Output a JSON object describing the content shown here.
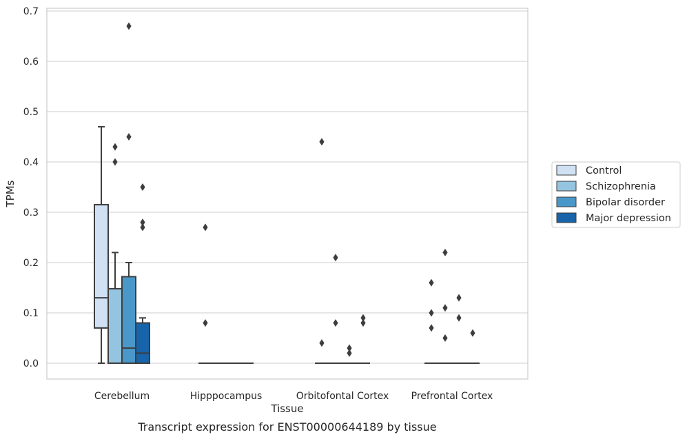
{
  "chart_data": {
    "type": "box",
    "title": "",
    "caption": "Transcript expression for ENST00000644189 by tissue",
    "xlabel": "Tissue",
    "ylabel": "TPMs",
    "ylim": [
      -0.032,
      0.705
    ],
    "yticks": [
      "0.0",
      "0.1",
      "0.2",
      "0.3",
      "0.4",
      "0.5",
      "0.6",
      "0.7"
    ],
    "grid": true,
    "legend_position": "right",
    "categories": [
      "Cerebellum",
      "Hipppocampus",
      "Orbitofontal Cortex",
      "Prefrontal Cortex"
    ],
    "series": [
      {
        "name": "Control",
        "color": "#cfe1f2",
        "boxes": [
          {
            "q1": 0.07,
            "median": 0.13,
            "q3": 0.315,
            "whisker_low": 0.0,
            "whisker_high": 0.47,
            "outliers": []
          },
          {
            "q1": 0.0,
            "median": 0.0,
            "q3": 0.0,
            "whisker_low": 0.0,
            "whisker_high": 0.0,
            "outliers": [
              0.27,
              0.08
            ]
          },
          {
            "q1": 0.0,
            "median": 0.0,
            "q3": 0.0,
            "whisker_low": 0.0,
            "whisker_high": 0.0,
            "outliers": [
              0.44,
              0.04
            ]
          },
          {
            "q1": 0.0,
            "median": 0.0,
            "q3": 0.0,
            "whisker_low": 0.0,
            "whisker_high": 0.0,
            "outliers": [
              0.16,
              0.1,
              0.07
            ]
          }
        ]
      },
      {
        "name": "Schizophrenia",
        "color": "#94c4df",
        "boxes": [
          {
            "q1": 0.0,
            "median": 0.0,
            "q3": 0.148,
            "whisker_low": 0.0,
            "whisker_high": 0.22,
            "outliers": [
              0.43,
              0.4
            ]
          },
          {
            "q1": 0.0,
            "median": 0.0,
            "q3": 0.0,
            "whisker_low": 0.0,
            "whisker_high": 0.0,
            "outliers": []
          },
          {
            "q1": 0.0,
            "median": 0.0,
            "q3": 0.0,
            "whisker_low": 0.0,
            "whisker_high": 0.0,
            "outliers": [
              0.21,
              0.08
            ]
          },
          {
            "q1": 0.0,
            "median": 0.0,
            "q3": 0.0,
            "whisker_low": 0.0,
            "whisker_high": 0.0,
            "outliers": [
              0.22,
              0.11,
              0.05
            ]
          }
        ]
      },
      {
        "name": "Bipolar disorder",
        "color": "#4a98c9",
        "boxes": [
          {
            "q1": 0.0,
            "median": 0.03,
            "q3": 0.172,
            "whisker_low": 0.0,
            "whisker_high": 0.2,
            "outliers": [
              0.67,
              0.45
            ]
          },
          {
            "q1": 0.0,
            "median": 0.0,
            "q3": 0.0,
            "whisker_low": 0.0,
            "whisker_high": 0.0,
            "outliers": []
          },
          {
            "q1": 0.0,
            "median": 0.0,
            "q3": 0.0,
            "whisker_low": 0.0,
            "whisker_high": 0.0,
            "outliers": [
              0.03,
              0.02
            ]
          },
          {
            "q1": 0.0,
            "median": 0.0,
            "q3": 0.0,
            "whisker_low": 0.0,
            "whisker_high": 0.0,
            "outliers": [
              0.13,
              0.09
            ]
          }
        ]
      },
      {
        "name": "Major depression",
        "color": "#1764ab",
        "boxes": [
          {
            "q1": 0.0,
            "median": 0.02,
            "q3": 0.08,
            "whisker_low": 0.0,
            "whisker_high": 0.09,
            "outliers": [
              0.35,
              0.28,
              0.27
            ]
          },
          {
            "q1": 0.0,
            "median": 0.0,
            "q3": 0.0,
            "whisker_low": 0.0,
            "whisker_high": 0.0,
            "outliers": []
          },
          {
            "q1": 0.0,
            "median": 0.0,
            "q3": 0.0,
            "whisker_low": 0.0,
            "whisker_high": 0.0,
            "outliers": [
              0.09,
              0.08
            ]
          },
          {
            "q1": 0.0,
            "median": 0.0,
            "q3": 0.0,
            "whisker_low": 0.0,
            "whisker_high": 0.0,
            "outliers": [
              0.06
            ]
          }
        ]
      }
    ]
  }
}
